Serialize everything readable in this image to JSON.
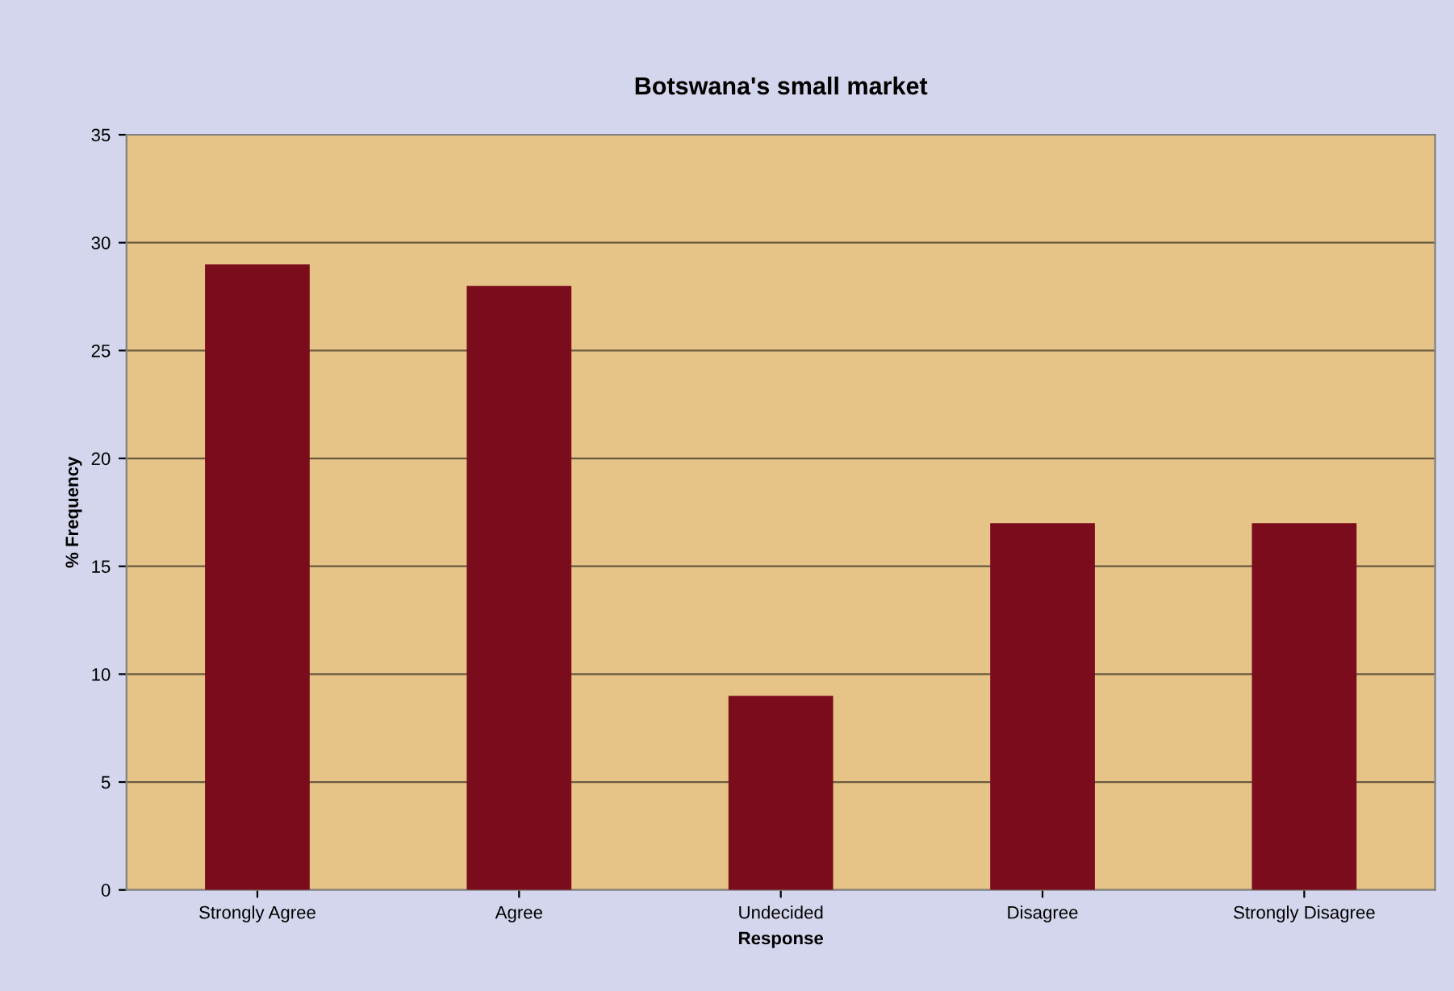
{
  "chart_data": {
    "type": "bar",
    "title": "Botswana's small market",
    "xlabel": "Response",
    "ylabel": "% Frequency",
    "categories": [
      "Strongly Agree",
      "Agree",
      "Undecided",
      "Disagree",
      "Strongly Disagree"
    ],
    "values": [
      29,
      28,
      9,
      17,
      17
    ],
    "color": "#7b0c1c",
    "ylim": [
      0,
      35
    ],
    "yticks": [
      0,
      5,
      10,
      15,
      20,
      25,
      30,
      35
    ],
    "grid": "y"
  }
}
